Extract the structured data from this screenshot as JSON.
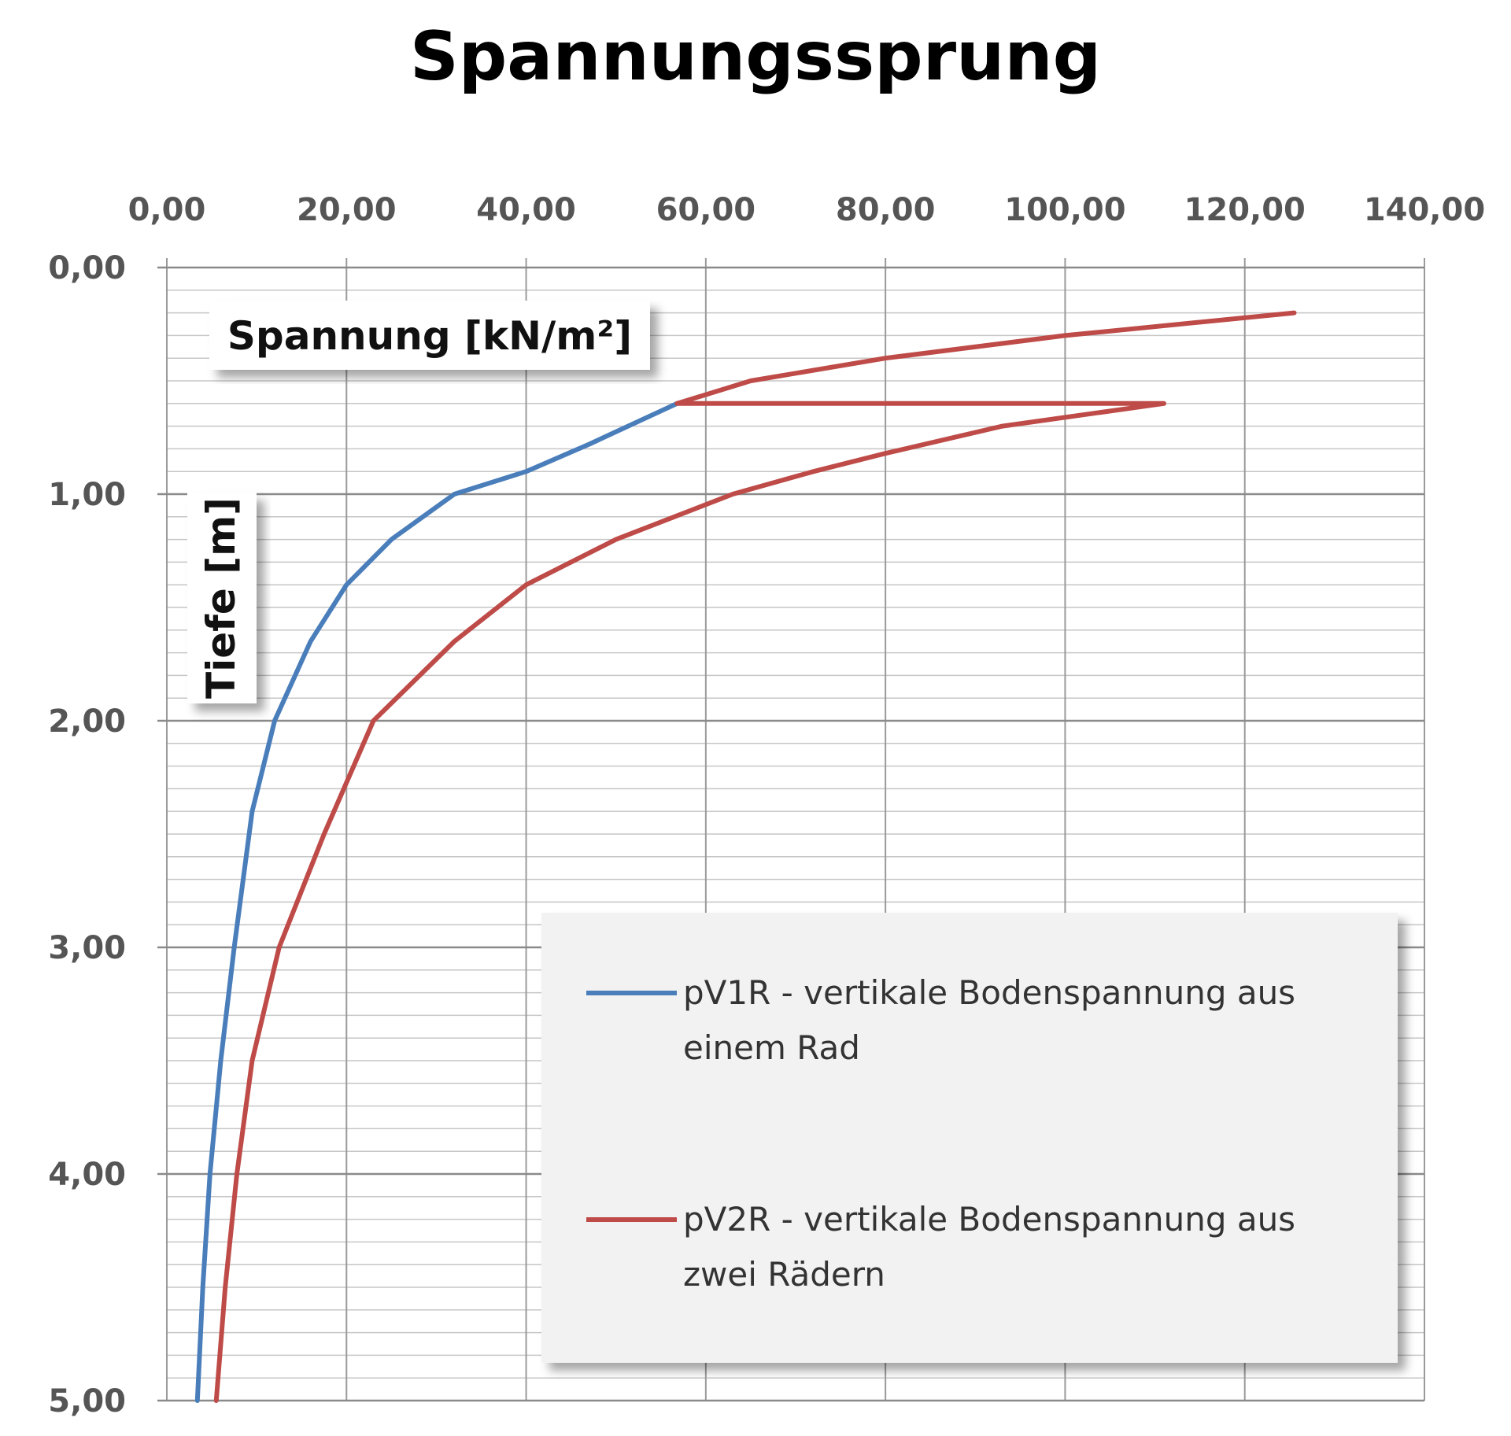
{
  "chart_data": {
    "type": "line",
    "title": "Spannungssprung",
    "xlabel": "Spannung [kN/m²]",
    "ylabel": "Tiefe [m]",
    "x_axis_position": "top",
    "y_axis_reversed": true,
    "xlim": [
      0,
      140
    ],
    "ylim": [
      0,
      5
    ],
    "x_ticks": [
      "0,00",
      "20,00",
      "40,00",
      "60,00",
      "80,00",
      "100,00",
      "120,00",
      "140,00"
    ],
    "y_ticks": [
      "0,00",
      "1,00",
      "2,00",
      "3,00",
      "4,00",
      "5,00"
    ],
    "grid": true,
    "legend_position": "bottom-right",
    "series": [
      {
        "name": "pV1R - vertikale Bodenspannung aus einem Rad",
        "color": "#4a7ebb",
        "points": [
          [
            56.8,
            0.6
          ],
          [
            47,
            0.78
          ],
          [
            40,
            0.9
          ],
          [
            32,
            1.0
          ],
          [
            25,
            1.2
          ],
          [
            20,
            1.4
          ],
          [
            16,
            1.65
          ],
          [
            12,
            2.0
          ],
          [
            9.5,
            2.4
          ],
          [
            7.5,
            3.0
          ],
          [
            6,
            3.5
          ],
          [
            4.8,
            4.0
          ],
          [
            4,
            4.5
          ],
          [
            3.4,
            5.0
          ]
        ]
      },
      {
        "name": "pV2R - vertikale Bodenspannung aus zwei Rädern",
        "color": "#be4b48",
        "points": [
          [
            125.5,
            0.2
          ],
          [
            100,
            0.3
          ],
          [
            80,
            0.4
          ],
          [
            65,
            0.5
          ],
          [
            56.8,
            0.6
          ],
          [
            111,
            0.6
          ],
          [
            93,
            0.7
          ],
          [
            80,
            0.82
          ],
          [
            72,
            0.9
          ],
          [
            63,
            1.0
          ],
          [
            50,
            1.2
          ],
          [
            40,
            1.4
          ],
          [
            32,
            1.65
          ],
          [
            23,
            2.0
          ],
          [
            17.5,
            2.5
          ],
          [
            12.5,
            3.0
          ],
          [
            9.5,
            3.5
          ],
          [
            7.8,
            4.0
          ],
          [
            6.5,
            4.5
          ],
          [
            5.5,
            5.0
          ]
        ]
      }
    ]
  }
}
